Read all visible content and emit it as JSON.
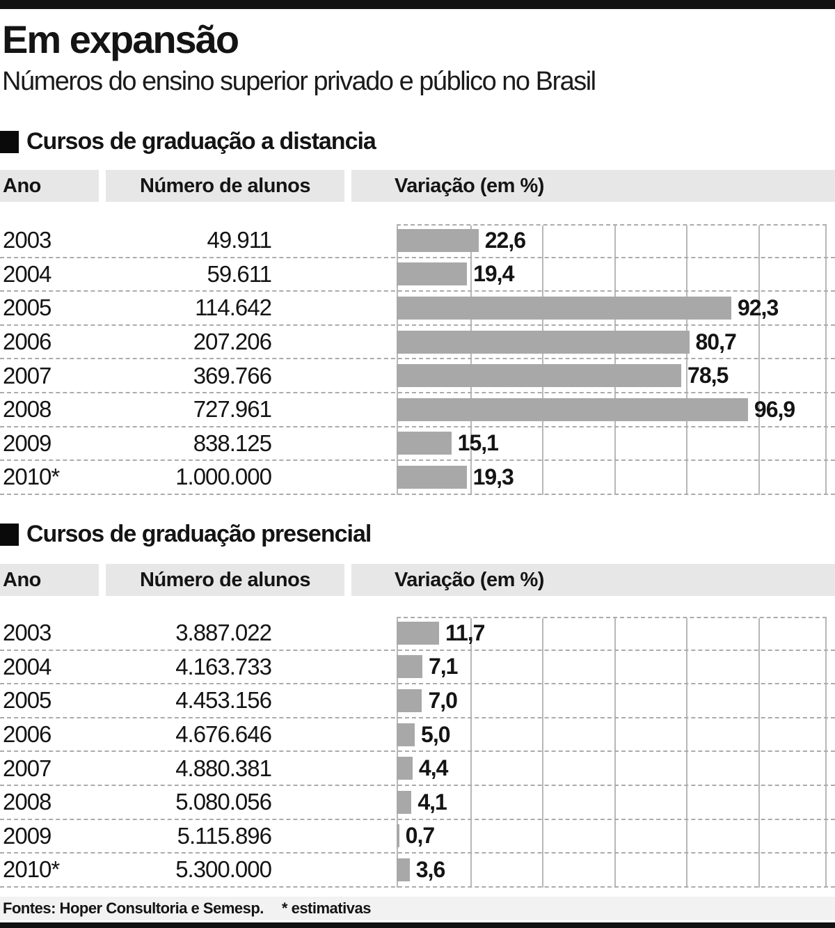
{
  "header": {
    "title": "Em expansão",
    "subtitle": "Números do ensino superior privado e público no Brasil"
  },
  "columns": {
    "year": "Ano",
    "students": "Número de alunos",
    "variation": "Variação (em %)"
  },
  "chart": {
    "axis_max": 118.6,
    "gridline_step": 20,
    "bar_color": "#a8a8a8",
    "band_color": "#e7e7e7"
  },
  "sections": [
    {
      "title": "Cursos de graduação a distancia",
      "rows": [
        {
          "year": "2003",
          "students": "49.911",
          "variation": "22,6",
          "value": 22.6
        },
        {
          "year": "2004",
          "students": "59.611",
          "variation": "19,4",
          "value": 19.4
        },
        {
          "year": "2005",
          "students": "114.642",
          "variation": "92,3",
          "value": 92.3
        },
        {
          "year": "2006",
          "students": "207.206",
          "variation": "80,7",
          "value": 80.7
        },
        {
          "year": "2007",
          "students": "369.766",
          "variation": "78,5",
          "value": 78.5
        },
        {
          "year": "2008",
          "students": "727.961",
          "variation": "96,9",
          "value": 96.9
        },
        {
          "year": "2009",
          "students": "838.125",
          "variation": "15,1",
          "value": 15.1
        },
        {
          "year": "2010*",
          "students": "1.000.000",
          "variation": "19,3",
          "value": 19.3
        }
      ]
    },
    {
      "title": "Cursos de graduação presencial",
      "rows": [
        {
          "year": "2003",
          "students": "3.887.022",
          "variation": "11,7",
          "value": 11.7
        },
        {
          "year": "2004",
          "students": "4.163.733",
          "variation": "7,1",
          "value": 7.1
        },
        {
          "year": "2005",
          "students": "4.453.156",
          "variation": "7,0",
          "value": 7.0
        },
        {
          "year": "2006",
          "students": "4.676.646",
          "variation": "5,0",
          "value": 5.0
        },
        {
          "year": "2007",
          "students": "4.880.381",
          "variation": "4,4",
          "value": 4.4
        },
        {
          "year": "2008",
          "students": "5.080.056",
          "variation": "4,1",
          "value": 4.1
        },
        {
          "year": "2009",
          "students": "5.115.896",
          "variation": "0,7",
          "value": 0.7
        },
        {
          "year": "2010*",
          "students": "5.300.000",
          "variation": "3,6",
          "value": 3.6
        }
      ]
    }
  ],
  "footer": {
    "sources": "Fontes: Hoper Consultoria e Semesp.",
    "note": "* estimativas"
  },
  "chart_data": [
    {
      "type": "bar",
      "orientation": "horizontal",
      "title": "Cursos de graduação a distancia",
      "categories": [
        "2003",
        "2004",
        "2005",
        "2006",
        "2007",
        "2008",
        "2009",
        "2010*"
      ],
      "series": [
        {
          "name": "Número de alunos",
          "values": [
            49911,
            59611,
            114642,
            207206,
            369766,
            727961,
            838125,
            1000000
          ]
        },
        {
          "name": "Variação (em %)",
          "values": [
            22.6,
            19.4,
            92.3,
            80.7,
            78.5,
            96.9,
            15.1,
            19.3
          ]
        }
      ],
      "xlim": [
        0,
        120
      ],
      "grid": "vertical gridlines every 20",
      "bar_labels": true
    },
    {
      "type": "bar",
      "orientation": "horizontal",
      "title": "Cursos de graduação presencial",
      "categories": [
        "2003",
        "2004",
        "2005",
        "2006",
        "2007",
        "2008",
        "2009",
        "2010*"
      ],
      "series": [
        {
          "name": "Número de alunos",
          "values": [
            3887022,
            4163733,
            4453156,
            4676646,
            4880381,
            5080056,
            5115896,
            5300000
          ]
        },
        {
          "name": "Variação (em %)",
          "values": [
            11.7,
            7.1,
            7.0,
            5.0,
            4.4,
            4.1,
            0.7,
            3.6
          ]
        }
      ],
      "xlim": [
        0,
        120
      ],
      "grid": "vertical gridlines every 20",
      "bar_labels": true
    }
  ]
}
